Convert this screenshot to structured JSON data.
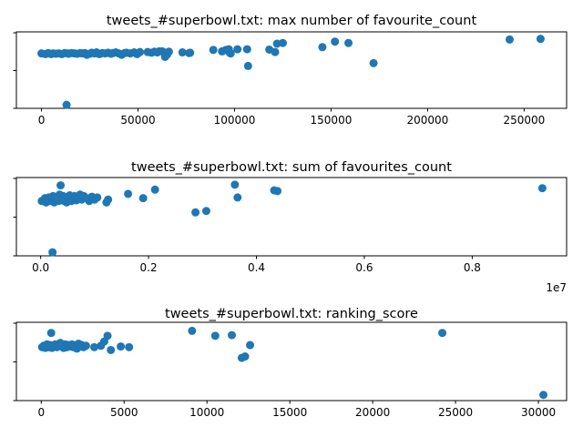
{
  "page": {
    "marker_color": "#1f77b4"
  },
  "chart_data": [
    {
      "type": "scatter",
      "title": "tweets_#superbowl.txt: max number of favourite_count",
      "xlim": [
        -13000,
        272000
      ],
      "ylim": [
        -0.05,
        1.05
      ],
      "xticks": [
        0,
        50000,
        100000,
        150000,
        200000,
        250000
      ],
      "xtick_labels": [
        "0",
        "50000",
        "100000",
        "150000",
        "200000",
        "250000"
      ],
      "y_tick_count": 3,
      "x_offset_label": "",
      "points": [
        [
          0,
          0.74
        ],
        [
          2000,
          0.73
        ],
        [
          3500,
          0.745
        ],
        [
          5000,
          0.73
        ],
        [
          6000,
          0.74
        ],
        [
          7500,
          0.735
        ],
        [
          9000,
          0.74
        ],
        [
          10500,
          0.73
        ],
        [
          12000,
          0.745
        ],
        [
          13500,
          0.74
        ],
        [
          14000,
          0.735
        ],
        [
          15500,
          0.745
        ],
        [
          17000,
          0.74
        ],
        [
          18500,
          0.735
        ],
        [
          20000,
          0.745
        ],
        [
          21000,
          0.74
        ],
        [
          22500,
          0.745
        ],
        [
          23500,
          0.72
        ],
        [
          25000,
          0.735
        ],
        [
          26000,
          0.75
        ],
        [
          27500,
          0.74
        ],
        [
          28500,
          0.755
        ],
        [
          30000,
          0.73
        ],
        [
          31500,
          0.745
        ],
        [
          33000,
          0.74
        ],
        [
          34500,
          0.75
        ],
        [
          36000,
          0.735
        ],
        [
          37000,
          0.745
        ],
        [
          38500,
          0.755
        ],
        [
          40000,
          0.74
        ],
        [
          41500,
          0.72
        ],
        [
          43000,
          0.745
        ],
        [
          44000,
          0.75
        ],
        [
          46000,
          0.74
        ],
        [
          48000,
          0.755
        ],
        [
          49500,
          0.73
        ],
        [
          51000,
          0.76
        ],
        [
          55000,
          0.76
        ],
        [
          57000,
          0.75
        ],
        [
          58500,
          0.765
        ],
        [
          60000,
          0.755
        ],
        [
          61000,
          0.77
        ],
        [
          62500,
          0.77
        ],
        [
          63500,
          0.755
        ],
        [
          64000,
          0.69
        ],
        [
          65000,
          0.72
        ],
        [
          66000,
          0.765
        ],
        [
          73000,
          0.755
        ],
        [
          76500,
          0.745
        ],
        [
          77000,
          0.75
        ],
        [
          89000,
          0.79
        ],
        [
          93500,
          0.77
        ],
        [
          95500,
          0.79
        ],
        [
          97000,
          0.8
        ],
        [
          97500,
          0.75
        ],
        [
          98000,
          0.74
        ],
        [
          101500,
          0.8
        ],
        [
          106500,
          0.8
        ],
        [
          107000,
          0.56
        ],
        [
          118000,
          0.795
        ],
        [
          121000,
          0.76
        ],
        [
          122000,
          0.88
        ],
        [
          125000,
          0.89
        ],
        [
          145500,
          0.83
        ],
        [
          152000,
          0.91
        ],
        [
          159000,
          0.89
        ],
        [
          172000,
          0.6
        ],
        [
          242500,
          0.94
        ],
        [
          258500,
          0.95
        ],
        [
          13000,
          0.0
        ]
      ]
    },
    {
      "type": "scatter",
      "title": "tweets_#superbowl.txt: sum of favourites_count",
      "xlim": [
        -450000,
        9750000
      ],
      "ylim": [
        -0.05,
        1.05
      ],
      "xticks": [
        0,
        2000000,
        4000000,
        6000000,
        8000000
      ],
      "xtick_labels": [
        "0.0",
        "0.2",
        "0.4",
        "0.6",
        "0.8"
      ],
      "y_tick_count": 3,
      "x_offset_label": "1e7",
      "points": [
        [
          20000,
          0.72
        ],
        [
          50000,
          0.73
        ],
        [
          80000,
          0.76
        ],
        [
          100000,
          0.7
        ],
        [
          120000,
          0.74
        ],
        [
          150000,
          0.77
        ],
        [
          170000,
          0.72
        ],
        [
          200000,
          0.75
        ],
        [
          230000,
          0.79
        ],
        [
          250000,
          0.7
        ],
        [
          280000,
          0.74
        ],
        [
          300000,
          0.78
        ],
        [
          330000,
          0.72
        ],
        [
          350000,
          0.81
        ],
        [
          370000,
          0.76
        ],
        [
          390000,
          0.73
        ],
        [
          420000,
          0.79
        ],
        [
          440000,
          0.72
        ],
        [
          460000,
          0.77
        ],
        [
          480000,
          0.7
        ],
        [
          510000,
          0.75
        ],
        [
          540000,
          0.8
        ],
        [
          570000,
          0.72
        ],
        [
          600000,
          0.76
        ],
        [
          630000,
          0.79
        ],
        [
          660000,
          0.73
        ],
        [
          700000,
          0.77
        ],
        [
          730000,
          0.81
        ],
        [
          760000,
          0.74
        ],
        [
          800000,
          0.79
        ],
        [
          850000,
          0.76
        ],
        [
          900000,
          0.72
        ],
        [
          950000,
          0.78
        ],
        [
          1000000,
          0.74
        ],
        [
          1050000,
          0.77
        ],
        [
          1220000,
          0.7
        ],
        [
          1250000,
          0.74
        ],
        [
          1620000,
          0.82
        ],
        [
          1900000,
          0.76
        ],
        [
          2120000,
          0.88
        ],
        [
          2870000,
          0.56
        ],
        [
          3070000,
          0.58
        ],
        [
          3600000,
          0.95
        ],
        [
          3650000,
          0.77
        ],
        [
          4330000,
          0.87
        ],
        [
          4390000,
          0.86
        ],
        [
          9300000,
          0.9
        ],
        [
          370000,
          0.94
        ],
        [
          220000,
          0.0
        ]
      ]
    },
    {
      "type": "scatter",
      "title": "tweets_#superbowl.txt: ranking_score",
      "xlim": [
        -1500,
        31700
      ],
      "ylim": [
        -0.05,
        1.05
      ],
      "xticks": [
        0,
        5000,
        10000,
        15000,
        20000,
        25000,
        30000
      ],
      "xtick_labels": [
        "0",
        "5000",
        "10000",
        "15000",
        "20000",
        "25000",
        "30000"
      ],
      "y_tick_count": 3,
      "x_offset_label": "",
      "points": [
        [
          50,
          0.7
        ],
        [
          150,
          0.72
        ],
        [
          250,
          0.69
        ],
        [
          350,
          0.74
        ],
        [
          450,
          0.7
        ],
        [
          550,
          0.73
        ],
        [
          650,
          0.69
        ],
        [
          750,
          0.72
        ],
        [
          850,
          0.74
        ],
        [
          950,
          0.7
        ],
        [
          1050,
          0.73
        ],
        [
          1150,
          0.76
        ],
        [
          1250,
          0.72
        ],
        [
          1350,
          0.69
        ],
        [
          1450,
          0.74
        ],
        [
          1550,
          0.7
        ],
        [
          1650,
          0.73
        ],
        [
          1750,
          0.71
        ],
        [
          1850,
          0.74
        ],
        [
          1950,
          0.7
        ],
        [
          2050,
          0.72
        ],
        [
          2150,
          0.68
        ],
        [
          2250,
          0.75
        ],
        [
          2350,
          0.71
        ],
        [
          2450,
          0.73
        ],
        [
          2550,
          0.7
        ],
        [
          2700,
          0.72
        ],
        [
          3200,
          0.7
        ],
        [
          3600,
          0.72
        ],
        [
          3800,
          0.78
        ],
        [
          4000,
          0.86
        ],
        [
          4200,
          0.66
        ],
        [
          4800,
          0.71
        ],
        [
          5300,
          0.7
        ],
        [
          600,
          0.9
        ],
        [
          9100,
          0.93
        ],
        [
          10500,
          0.86
        ],
        [
          11500,
          0.87
        ],
        [
          12100,
          0.55
        ],
        [
          12300,
          0.57
        ],
        [
          12600,
          0.73
        ],
        [
          24200,
          0.9
        ],
        [
          30300,
          0.03
        ]
      ]
    }
  ]
}
